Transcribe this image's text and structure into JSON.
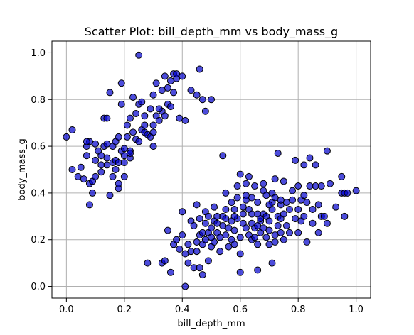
{
  "chart_data": {
    "type": "scatter",
    "title": "Scatter Plot: bill_depth_mm vs body_mass_g",
    "xlabel": "bill_depth_mm",
    "ylabel": "body_mass_g",
    "xlim": [
      -0.05,
      1.05
    ],
    "ylim": [
      -0.05,
      1.05
    ],
    "xticks": [
      0.0,
      0.2,
      0.4,
      0.6,
      0.8,
      1.0
    ],
    "yticks": [
      0.0,
      0.2,
      0.4,
      0.6,
      0.8,
      1.0
    ],
    "xtick_labels": [
      "0.0",
      "0.2",
      "0.4",
      "0.6",
      "0.8",
      "1.0"
    ],
    "ytick_labels": [
      "0.0",
      "0.2",
      "0.4",
      "0.6",
      "0.8",
      "1.0"
    ],
    "grid": true,
    "legend": "none",
    "marker_fill": "#0000cc",
    "marker_edge": "#000000",
    "points": [
      [
        0.0,
        0.64
      ],
      [
        0.02,
        0.5
      ],
      [
        0.02,
        0.67
      ],
      [
        0.04,
        0.47
      ],
      [
        0.05,
        0.51
      ],
      [
        0.06,
        0.46
      ],
      [
        0.07,
        0.56
      ],
      [
        0.07,
        0.6
      ],
      [
        0.08,
        0.62
      ],
      [
        0.08,
        0.35
      ],
      [
        0.08,
        0.44
      ],
      [
        0.09,
        0.4
      ],
      [
        0.09,
        0.45
      ],
      [
        0.1,
        0.47
      ],
      [
        0.1,
        0.54
      ],
      [
        0.1,
        0.61
      ],
      [
        0.11,
        0.58
      ],
      [
        0.12,
        0.49
      ],
      [
        0.12,
        0.56
      ],
      [
        0.13,
        0.72
      ],
      [
        0.13,
        0.6
      ],
      [
        0.14,
        0.55
      ],
      [
        0.14,
        0.52
      ],
      [
        0.14,
        0.72
      ],
      [
        0.15,
        0.39
      ],
      [
        0.15,
        0.83
      ],
      [
        0.16,
        0.53
      ],
      [
        0.16,
        0.6
      ],
      [
        0.16,
        0.47
      ],
      [
        0.17,
        0.54
      ],
      [
        0.17,
        0.62
      ],
      [
        0.17,
        0.5
      ],
      [
        0.18,
        0.53
      ],
      [
        0.18,
        0.64
      ],
      [
        0.18,
        0.42
      ],
      [
        0.18,
        0.44
      ],
      [
        0.19,
        0.78
      ],
      [
        0.19,
        0.58
      ],
      [
        0.19,
        0.87
      ],
      [
        0.2,
        0.59
      ],
      [
        0.2,
        0.56
      ],
      [
        0.2,
        0.53
      ],
      [
        0.2,
        0.47
      ],
      [
        0.21,
        0.64
      ],
      [
        0.21,
        0.69
      ],
      [
        0.22,
        0.55
      ],
      [
        0.22,
        0.72
      ],
      [
        0.22,
        0.58
      ],
      [
        0.23,
        0.81
      ],
      [
        0.23,
        0.66
      ],
      [
        0.24,
        0.63
      ],
      [
        0.24,
        0.74
      ],
      [
        0.25,
        0.78
      ],
      [
        0.25,
        0.62
      ],
      [
        0.25,
        0.99
      ],
      [
        0.26,
        0.67
      ],
      [
        0.26,
        0.79
      ],
      [
        0.27,
        0.66
      ],
      [
        0.27,
        0.73
      ],
      [
        0.28,
        0.65
      ],
      [
        0.29,
        0.64
      ],
      [
        0.29,
        0.76
      ],
      [
        0.3,
        0.69
      ],
      [
        0.3,
        0.82
      ],
      [
        0.3,
        0.66
      ],
      [
        0.3,
        0.6
      ],
      [
        0.31,
        0.87
      ],
      [
        0.31,
        0.73
      ],
      [
        0.32,
        0.71
      ],
      [
        0.33,
        0.84
      ],
      [
        0.33,
        0.75
      ],
      [
        0.34,
        0.9
      ],
      [
        0.34,
        0.73
      ],
      [
        0.35,
        0.85
      ],
      [
        0.35,
        0.78
      ],
      [
        0.36,
        0.88
      ],
      [
        0.36,
        0.77
      ],
      [
        0.37,
        0.91
      ],
      [
        0.37,
        0.83
      ],
      [
        0.38,
        0.89
      ],
      [
        0.38,
        0.91
      ],
      [
        0.39,
        0.72
      ],
      [
        0.4,
        0.9
      ],
      [
        0.41,
        0.71
      ],
      [
        0.43,
        0.84
      ],
      [
        0.45,
        0.82
      ],
      [
        0.46,
        0.93
      ],
      [
        0.47,
        0.8
      ],
      [
        0.48,
        0.75
      ],
      [
        0.5,
        0.8
      ],
      [
        0.22,
        0.57
      ],
      [
        0.14,
        0.61
      ],
      [
        0.07,
        0.62
      ],
      [
        0.12,
        0.52
      ],
      [
        0.27,
        0.69
      ],
      [
        0.32,
        0.76
      ],
      [
        0.28,
        0.1
      ],
      [
        0.33,
        0.1
      ],
      [
        0.34,
        0.11
      ],
      [
        0.35,
        0.24
      ],
      [
        0.36,
        0.06
      ],
      [
        0.37,
        0.18
      ],
      [
        0.38,
        0.2
      ],
      [
        0.39,
        0.16
      ],
      [
        0.4,
        0.22
      ],
      [
        0.4,
        0.32
      ],
      [
        0.41,
        0.14
      ],
      [
        0.41,
        0.0
      ],
      [
        0.42,
        0.18
      ],
      [
        0.42,
        0.1
      ],
      [
        0.43,
        0.15
      ],
      [
        0.43,
        0.28
      ],
      [
        0.44,
        0.26
      ],
      [
        0.44,
        0.08
      ],
      [
        0.45,
        0.19
      ],
      [
        0.45,
        0.35
      ],
      [
        0.45,
        0.15
      ],
      [
        0.46,
        0.22
      ],
      [
        0.46,
        0.29
      ],
      [
        0.46,
        0.08
      ],
      [
        0.47,
        0.05
      ],
      [
        0.47,
        0.23
      ],
      [
        0.47,
        0.18
      ],
      [
        0.48,
        0.2
      ],
      [
        0.48,
        0.27
      ],
      [
        0.48,
        0.32
      ],
      [
        0.49,
        0.23
      ],
      [
        0.49,
        0.11
      ],
      [
        0.49,
        0.3
      ],
      [
        0.5,
        0.25
      ],
      [
        0.5,
        0.17
      ],
      [
        0.51,
        0.19
      ],
      [
        0.51,
        0.28
      ],
      [
        0.51,
        0.34
      ],
      [
        0.52,
        0.23
      ],
      [
        0.52,
        0.3
      ],
      [
        0.53,
        0.21
      ],
      [
        0.53,
        0.15
      ],
      [
        0.54,
        0.26
      ],
      [
        0.54,
        0.56
      ],
      [
        0.54,
        0.3
      ],
      [
        0.55,
        0.22
      ],
      [
        0.55,
        0.29
      ],
      [
        0.55,
        0.33
      ],
      [
        0.56,
        0.17
      ],
      [
        0.56,
        0.25
      ],
      [
        0.57,
        0.2
      ],
      [
        0.57,
        0.28
      ],
      [
        0.57,
        0.36
      ],
      [
        0.58,
        0.33
      ],
      [
        0.58,
        0.24
      ],
      [
        0.58,
        0.18
      ],
      [
        0.59,
        0.29
      ],
      [
        0.59,
        0.43
      ],
      [
        0.59,
        0.38
      ],
      [
        0.6,
        0.21
      ],
      [
        0.6,
        0.06
      ],
      [
        0.6,
        0.14
      ],
      [
        0.6,
        0.48
      ],
      [
        0.61,
        0.34
      ],
      [
        0.61,
        0.27
      ],
      [
        0.61,
        0.31
      ],
      [
        0.62,
        0.39
      ],
      [
        0.62,
        0.25
      ],
      [
        0.62,
        0.44
      ],
      [
        0.63,
        0.22
      ],
      [
        0.63,
        0.33
      ],
      [
        0.63,
        0.47
      ],
      [
        0.64,
        0.2
      ],
      [
        0.64,
        0.27
      ],
      [
        0.64,
        0.31
      ],
      [
        0.64,
        0.38
      ],
      [
        0.65,
        0.25
      ],
      [
        0.65,
        0.21
      ],
      [
        0.65,
        0.43
      ],
      [
        0.66,
        0.18
      ],
      [
        0.66,
        0.07
      ],
      [
        0.66,
        0.36
      ],
      [
        0.66,
        0.31
      ],
      [
        0.67,
        0.23
      ],
      [
        0.67,
        0.28
      ],
      [
        0.67,
        0.29
      ],
      [
        0.68,
        0.44
      ],
      [
        0.68,
        0.31
      ],
      [
        0.68,
        0.41
      ],
      [
        0.69,
        0.21
      ],
      [
        0.69,
        0.3
      ],
      [
        0.69,
        0.39
      ],
      [
        0.7,
        0.24
      ],
      [
        0.7,
        0.28
      ],
      [
        0.7,
        0.18
      ],
      [
        0.71,
        0.4
      ],
      [
        0.71,
        0.36
      ],
      [
        0.71,
        0.33
      ],
      [
        0.71,
        0.1
      ],
      [
        0.72,
        0.19
      ],
      [
        0.72,
        0.22
      ],
      [
        0.72,
        0.38
      ],
      [
        0.72,
        0.46
      ],
      [
        0.73,
        0.26
      ],
      [
        0.73,
        0.3
      ],
      [
        0.73,
        0.57
      ],
      [
        0.74,
        0.35
      ],
      [
        0.74,
        0.23
      ],
      [
        0.74,
        0.29
      ],
      [
        0.75,
        0.31
      ],
      [
        0.75,
        0.45
      ],
      [
        0.75,
        0.2
      ],
      [
        0.76,
        0.36
      ],
      [
        0.76,
        0.26
      ],
      [
        0.77,
        0.33
      ],
      [
        0.77,
        0.23
      ],
      [
        0.78,
        0.41
      ],
      [
        0.78,
        0.37
      ],
      [
        0.79,
        0.29
      ],
      [
        0.79,
        0.54
      ],
      [
        0.8,
        0.43
      ],
      [
        0.8,
        0.23
      ],
      [
        0.8,
        0.33
      ],
      [
        0.81,
        0.28
      ],
      [
        0.81,
        0.37
      ],
      [
        0.82,
        0.3
      ],
      [
        0.82,
        0.52
      ],
      [
        0.82,
        0.39
      ],
      [
        0.83,
        0.19
      ],
      [
        0.83,
        0.36
      ],
      [
        0.84,
        0.43
      ],
      [
        0.84,
        0.55
      ],
      [
        0.85,
        0.33
      ],
      [
        0.85,
        0.27
      ],
      [
        0.86,
        0.43
      ],
      [
        0.86,
        0.52
      ],
      [
        0.87,
        0.23
      ],
      [
        0.87,
        0.35
      ],
      [
        0.88,
        0.3
      ],
      [
        0.88,
        0.43
      ],
      [
        0.89,
        0.3
      ],
      [
        0.9,
        0.58
      ],
      [
        0.9,
        0.27
      ],
      [
        0.91,
        0.44
      ],
      [
        0.93,
        0.34
      ],
      [
        0.95,
        0.47
      ],
      [
        0.95,
        0.4
      ],
      [
        0.96,
        0.4
      ],
      [
        0.96,
        0.3
      ],
      [
        0.97,
        0.4
      ],
      [
        1.0,
        0.41
      ],
      [
        0.62,
        0.37
      ],
      [
        0.55,
        0.4
      ],
      [
        0.58,
        0.3
      ],
      [
        0.66,
        0.26
      ],
      [
        0.7,
        0.35
      ],
      [
        0.68,
        0.25
      ],
      [
        0.74,
        0.37
      ],
      [
        0.52,
        0.27
      ],
      [
        0.5,
        0.21
      ]
    ]
  }
}
